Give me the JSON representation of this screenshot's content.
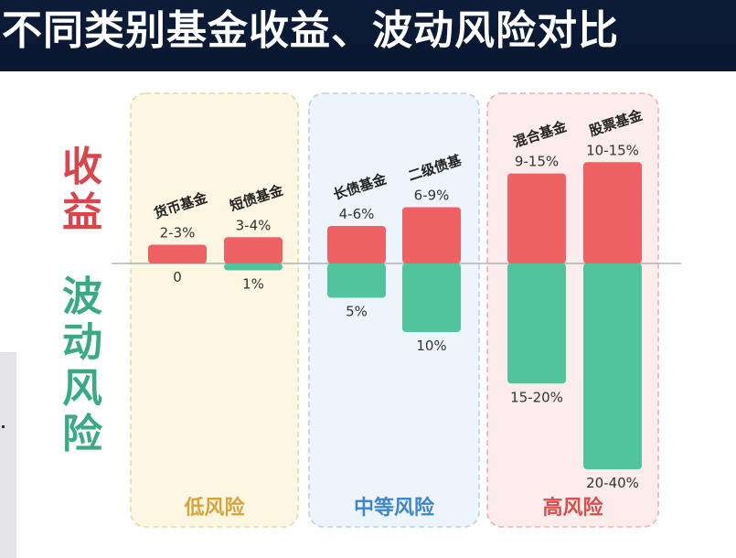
{
  "title": "不同类别基金收益、波动风险对比",
  "side_labels": {
    "return": "收益",
    "risk": "波动风险"
  },
  "colors": {
    "return_bar": "#ef6264",
    "risk_bar": "#52c49d",
    "low_group_bg": "#fdf6e3",
    "low_group_border": "#e8d7a3",
    "low_group_text": "#d7a43a",
    "mid_group_bg": "#edf4fb",
    "mid_group_border": "#b9d0e8",
    "mid_group_text": "#3d86cc",
    "high_group_bg": "#fcecec",
    "high_group_border": "#ecb0b0",
    "high_group_text": "#d84d4d",
    "return_text": "#d9454b",
    "risk_text": "#3aa986"
  },
  "chart_data": {
    "type": "bar",
    "title": "不同类别基金收益、波动风险对比",
    "categories": [
      "货币基金",
      "短债基金",
      "长债基金",
      "二级债基",
      "混合基金",
      "股票基金"
    ],
    "groups": [
      {
        "label": "低风险",
        "categories": [
          "货币基金",
          "短债基金"
        ]
      },
      {
        "label": "中等风险",
        "categories": [
          "长债基金",
          "二级债基"
        ]
      },
      {
        "label": "高风险",
        "categories": [
          "混合基金",
          "股票基金"
        ]
      }
    ],
    "series": [
      {
        "name": "收益",
        "labels": [
          "2-3%",
          "3-4%",
          "4-6%",
          "6-9%",
          "9-15%",
          "10-15%"
        ],
        "values": [
          2.5,
          3.5,
          5,
          7.5,
          12,
          13.5
        ]
      },
      {
        "name": "波动风险",
        "labels": [
          "0",
          "1%",
          "5%",
          "10%",
          "15-20%",
          "20-40%"
        ],
        "values": [
          0,
          1,
          5,
          10,
          17.5,
          30
        ]
      }
    ]
  }
}
